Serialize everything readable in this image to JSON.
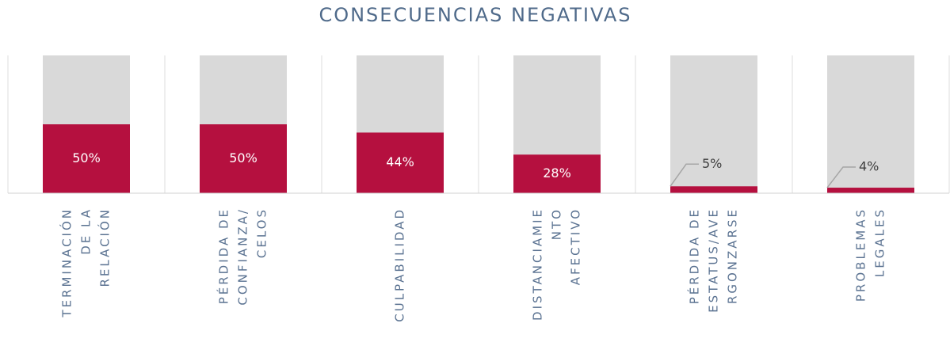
{
  "chart_data": {
    "type": "bar",
    "title": "CONSECUENCIAS NEGATIVAS",
    "categories": [
      [
        "TERMINACIÓN",
        "DE LA",
        "RELACIÓN"
      ],
      [
        "PÉRDIDA DE",
        "CONFIANZA/",
        "CELOS"
      ],
      [
        "CULPABILIDAD"
      ],
      [
        "DISTANCIAMIE",
        "NTO",
        "AFECTIVO"
      ],
      [
        "PÉRDIDA DE",
        "ESTATUS/AVE",
        "RGONZARSE"
      ],
      [
        "PROBLEMAS",
        "LEGALES"
      ]
    ],
    "values": [
      50,
      50,
      44,
      28,
      5,
      4
    ],
    "value_labels": [
      "50%",
      "50%",
      "44%",
      "28%",
      "5%",
      "4%"
    ],
    "color": "#b5103f",
    "track_color": "#d9d9d9",
    "ylim": [
      0,
      100
    ]
  }
}
